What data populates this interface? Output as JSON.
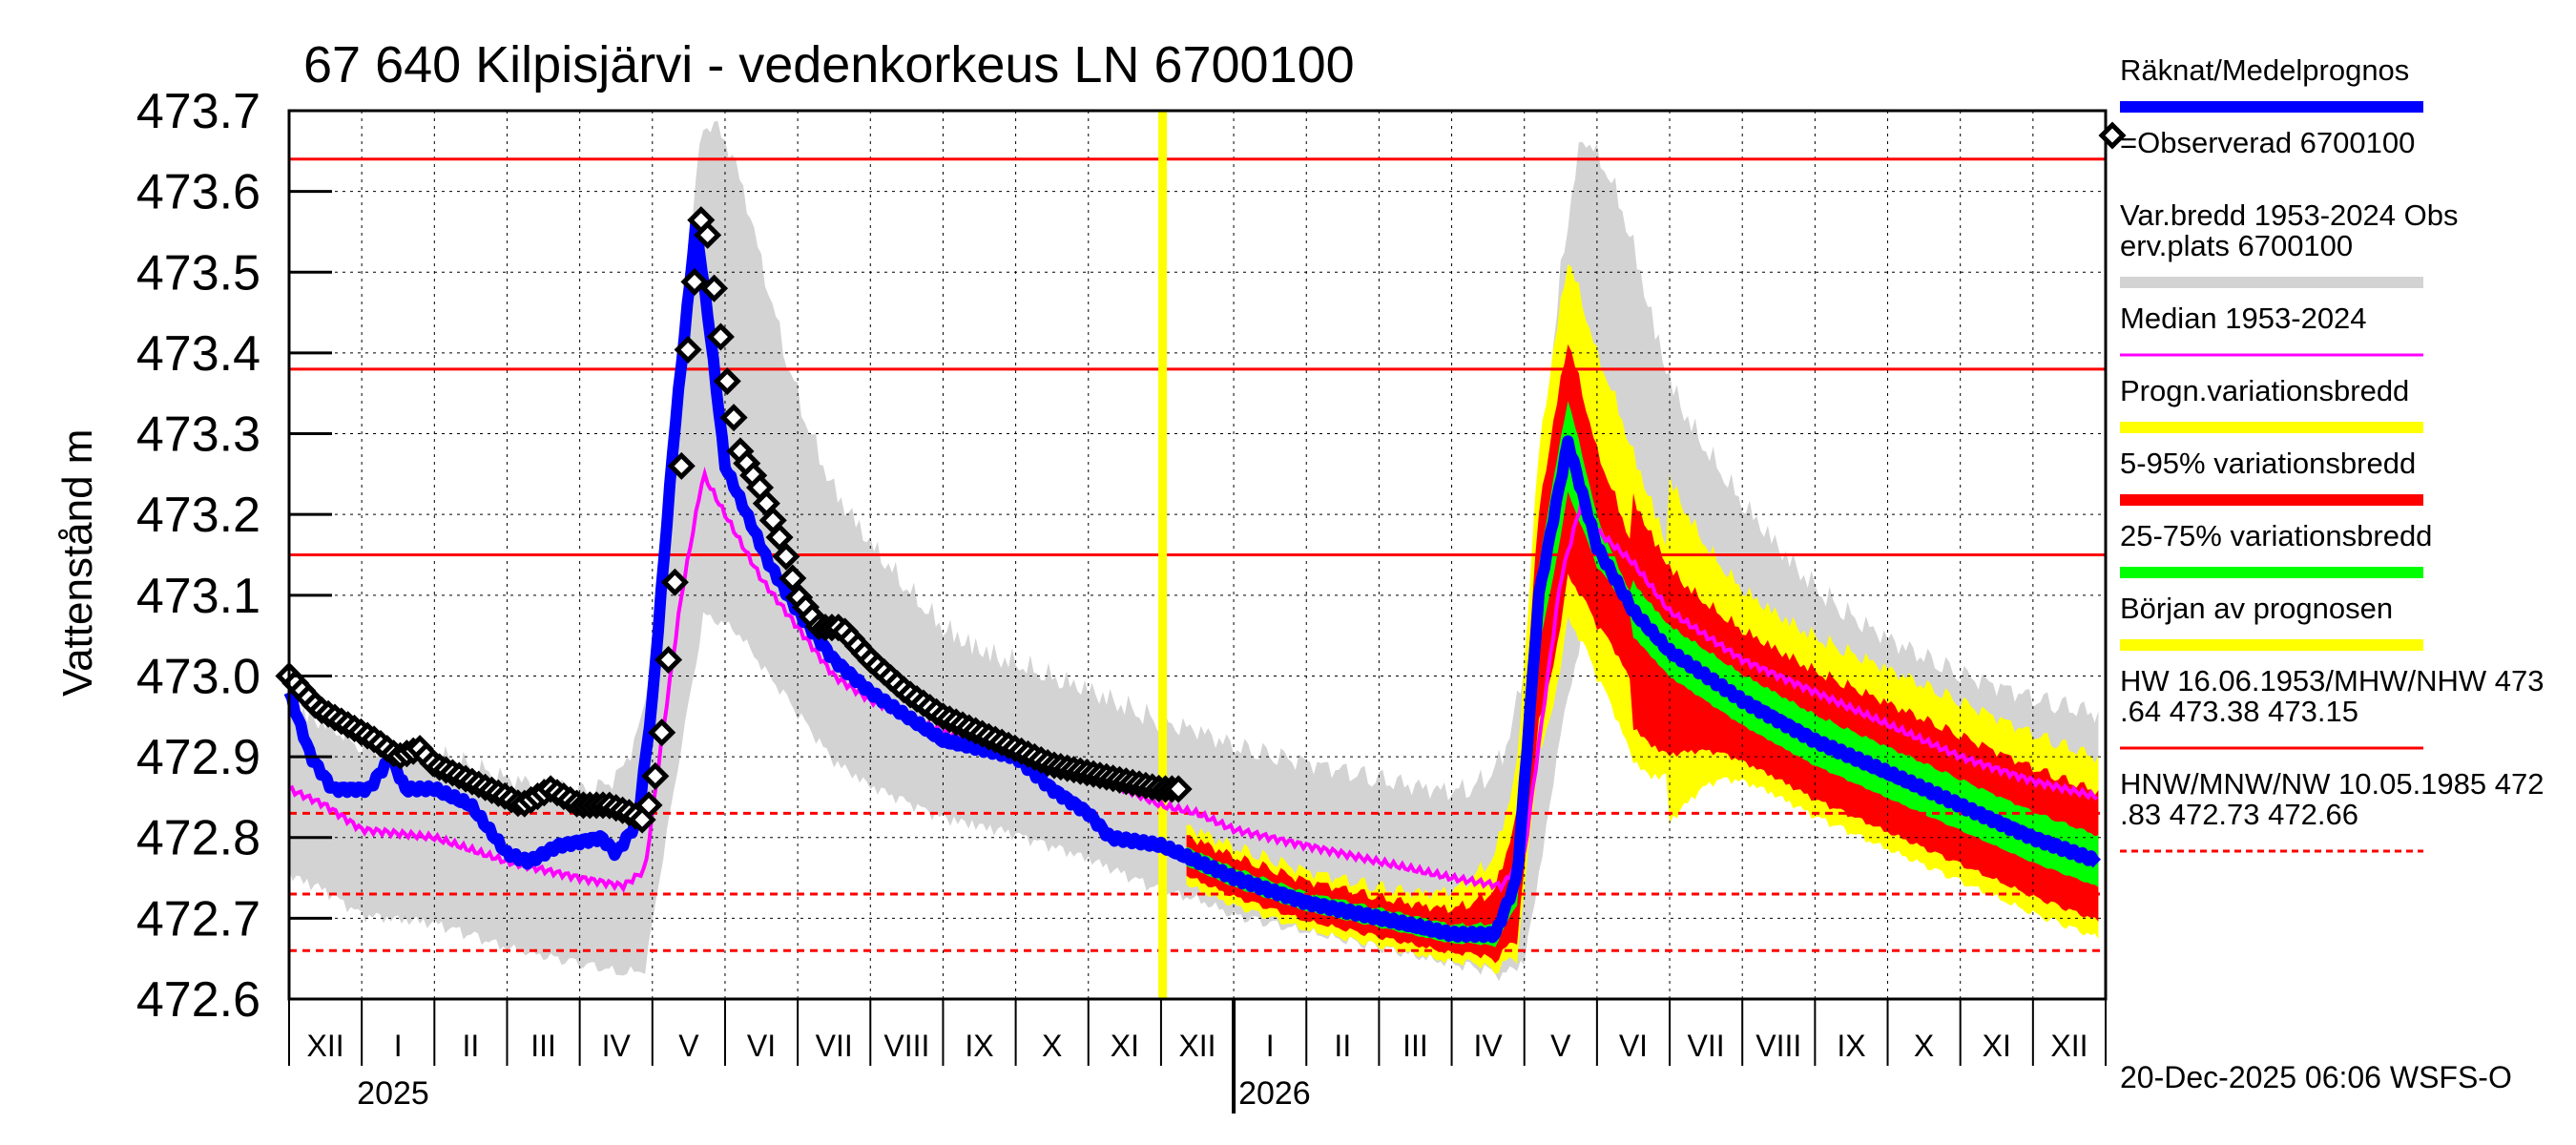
{
  "chart_data": {
    "type": "line",
    "title": "67 640 Kilpisjärvi - vedenkorkeus LN 6700100",
    "ylabel": "Vattenstånd m",
    "ylim": [
      472.6,
      473.7
    ],
    "yticks": [
      "473.7",
      "473.6",
      "473.5",
      "473.4",
      "473.3",
      "473.2",
      "473.1",
      "473.0",
      "472.9",
      "472.8",
      "472.7",
      "472.6"
    ],
    "months": [
      "XII",
      "I",
      "II",
      "III",
      "IV",
      "V",
      "VI",
      "VII",
      "VIII",
      "IX",
      "X",
      "XI",
      "XII",
      "I",
      "II",
      "III",
      "IV",
      "V",
      "VI",
      "VII",
      "VIII",
      "IX",
      "X",
      "XI",
      "XII"
    ],
    "years": [
      "2025",
      "2026"
    ],
    "forecast_start": "XII 2025",
    "reference_lines": {
      "solid": [
        473.64,
        473.38,
        473.15
      ],
      "dashed": [
        472.83,
        472.73,
        472.66
      ]
    },
    "series": [
      {
        "name": "Räknat/Medelprognos",
        "color": "#0000ff",
        "points": [
          [
            0,
            472.98
          ],
          [
            0.3,
            472.9
          ],
          [
            0.6,
            472.86
          ],
          [
            1.1,
            472.86
          ],
          [
            1.4,
            472.9
          ],
          [
            1.6,
            472.86
          ],
          [
            2,
            472.86
          ],
          [
            2.5,
            472.84
          ],
          [
            3,
            472.78
          ],
          [
            3.3,
            472.77
          ],
          [
            3.7,
            472.79
          ],
          [
            4.3,
            472.8
          ],
          [
            4.5,
            472.78
          ],
          [
            4.8,
            472.82
          ],
          [
            5.0,
            472.97
          ],
          [
            5.3,
            473.3
          ],
          [
            5.6,
            473.56
          ],
          [
            5.8,
            473.42
          ],
          [
            6.0,
            473.26
          ],
          [
            6.3,
            473.2
          ],
          [
            6.6,
            473.14
          ],
          [
            7.0,
            473.08
          ],
          [
            7.5,
            473.02
          ],
          [
            8,
            472.98
          ],
          [
            8.5,
            472.95
          ],
          [
            9,
            472.92
          ],
          [
            10,
            472.9
          ],
          [
            10.5,
            472.86
          ],
          [
            11,
            472.83
          ],
          [
            11.3,
            472.8
          ],
          [
            12,
            472.79
          ],
          [
            13,
            472.75
          ],
          [
            14,
            472.72
          ],
          [
            15,
            472.7
          ],
          [
            16,
            472.68
          ],
          [
            16.6,
            472.68
          ],
          [
            16.9,
            472.75
          ],
          [
            17.2,
            473.1
          ],
          [
            17.6,
            473.29
          ],
          [
            18,
            473.16
          ],
          [
            18.5,
            473.08
          ],
          [
            19,
            473.03
          ],
          [
            20,
            472.97
          ],
          [
            21,
            472.92
          ],
          [
            22,
            472.88
          ],
          [
            23,
            472.84
          ],
          [
            24,
            472.8
          ],
          [
            24.9,
            472.77
          ]
        ]
      },
      {
        "name": "Median 1953-2024",
        "color": "#ff00ff",
        "points": [
          [
            0,
            472.86
          ],
          [
            0.5,
            472.84
          ],
          [
            1,
            472.81
          ],
          [
            2,
            472.8
          ],
          [
            3,
            472.77
          ],
          [
            4,
            472.75
          ],
          [
            4.6,
            472.74
          ],
          [
            4.9,
            472.76
          ],
          [
            5.1,
            472.9
          ],
          [
            5.4,
            473.1
          ],
          [
            5.7,
            473.25
          ],
          [
            6.0,
            473.2
          ],
          [
            6.5,
            473.12
          ],
          [
            7,
            473.06
          ],
          [
            7.5,
            473.0
          ],
          [
            8,
            472.97
          ],
          [
            9,
            472.93
          ],
          [
            10,
            472.91
          ],
          [
            11,
            472.88
          ],
          [
            12,
            472.84
          ],
          [
            12.5,
            472.83
          ],
          [
            13,
            472.81
          ],
          [
            14,
            472.79
          ],
          [
            15,
            472.77
          ],
          [
            16,
            472.75
          ],
          [
            16.7,
            472.74
          ],
          [
            17,
            472.78
          ],
          [
            17.5,
            473.12
          ],
          [
            17.8,
            473.22
          ],
          [
            18,
            473.18
          ],
          [
            18.5,
            473.14
          ],
          [
            19,
            473.08
          ],
          [
            20,
            473.02
          ],
          [
            21,
            472.98
          ],
          [
            22,
            472.94
          ],
          [
            23,
            472.9
          ],
          [
            24,
            472.87
          ],
          [
            24.9,
            472.85
          ]
        ]
      },
      {
        "name": "=Observerad 6700100",
        "color": "#000000",
        "points": [
          [
            0,
            473.0
          ],
          [
            0.4,
            472.96
          ],
          [
            0.8,
            472.94
          ],
          [
            1.2,
            472.92
          ],
          [
            1.5,
            472.9
          ],
          [
            1.8,
            472.91
          ],
          [
            2,
            472.89
          ],
          [
            2.5,
            472.87
          ],
          [
            3,
            472.85
          ],
          [
            3.2,
            472.84
          ],
          [
            3.6,
            472.86
          ],
          [
            4,
            472.84
          ],
          [
            4.4,
            472.84
          ],
          [
            4.7,
            472.83
          ],
          [
            4.9,
            472.82
          ],
          [
            5.1,
            472.9
          ],
          [
            5.3,
            473.1
          ],
          [
            5.5,
            473.42
          ],
          [
            5.7,
            473.59
          ],
          [
            5.85,
            473.48
          ],
          [
            6.0,
            473.38
          ],
          [
            6.2,
            473.28
          ],
          [
            6.5,
            473.23
          ],
          [
            6.8,
            473.16
          ],
          [
            7.0,
            473.1
          ],
          [
            7.3,
            473.06
          ],
          [
            7.6,
            473.06
          ],
          [
            8,
            473.02
          ],
          [
            8.5,
            472.98
          ],
          [
            9,
            472.95
          ],
          [
            9.5,
            472.93
          ],
          [
            10,
            472.91
          ],
          [
            10.5,
            472.89
          ],
          [
            11,
            472.88
          ],
          [
            11.5,
            472.87
          ],
          [
            12,
            472.86
          ],
          [
            12.3,
            472.86
          ]
        ]
      }
    ],
    "bands": [
      {
        "name": "Var.bredd 1953-2024 Obs erv.plats 6700100",
        "color": "#d3d3d3"
      },
      {
        "name": "Progn.variationsbredd",
        "color": "#ffff00"
      },
      {
        "name": "5-95% variationsbredd",
        "color": "#ff0000"
      },
      {
        "name": "25-75% variationsbredd",
        "color": "#00ff00"
      }
    ],
    "legend": [
      {
        "label": "Räknat/Medelprognos",
        "color": "#0000ff",
        "style": "line"
      },
      {
        "label": "=Observerad 6700100",
        "color": "#000000",
        "style": "marker"
      },
      {
        "label": "Var.bredd 1953-2024   Obs\nerv.plats 6700100",
        "color": "#d3d3d3",
        "style": "line"
      },
      {
        "label": "Median 1953-2024",
        "color": "#ff00ff",
        "style": "thin"
      },
      {
        "label": "Progn.variationsbredd",
        "color": "#ffff00",
        "style": "line"
      },
      {
        "label": "5-95% variationsbredd",
        "color": "#ff0000",
        "style": "line"
      },
      {
        "label": "25-75% variationsbredd",
        "color": "#00ff00",
        "style": "line"
      },
      {
        "label": "Början av prognosen",
        "color": "#ffff00",
        "style": "line"
      },
      {
        "label": "HW 16.06.1953/MHW/NHW 473\n.64 473.38 473.15",
        "color": "#ff0000",
        "style": "thin"
      },
      {
        "label": "HNW/MNW/NW 10.05.1985 472\n.83 472.73 472.66",
        "color": "#ff0000",
        "style": "dashed"
      }
    ],
    "footer": "20-Dec-2025 06:06 WSFS-O"
  }
}
